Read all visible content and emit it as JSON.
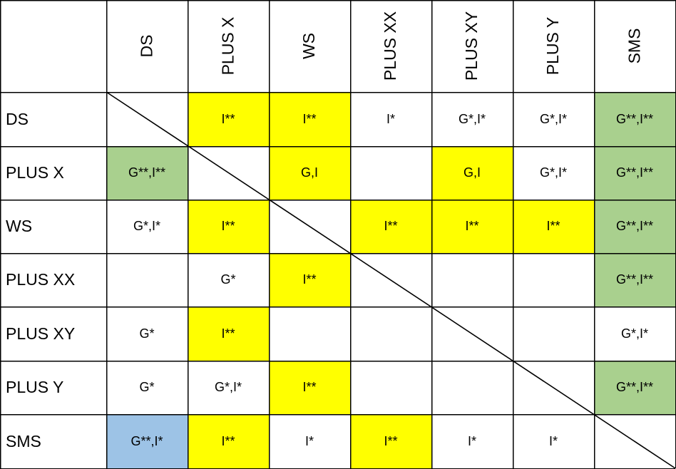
{
  "columns": [
    "DS",
    "PLUS X",
    "WS",
    "PLUS XX",
    "PLUS XY",
    "PLUS Y",
    "SMS"
  ],
  "rows": [
    {
      "label": "DS",
      "cells": [
        {
          "text": "",
          "fill": ""
        },
        {
          "text": "I**",
          "fill": "yellow"
        },
        {
          "text": "I**",
          "fill": "yellow"
        },
        {
          "text": "I*",
          "fill": ""
        },
        {
          "text": "G*,I*",
          "fill": ""
        },
        {
          "text": "G*,I*",
          "fill": ""
        },
        {
          "text": "G**,I**",
          "fill": "green"
        }
      ]
    },
    {
      "label": "PLUS X",
      "cells": [
        {
          "text": "G**,I**",
          "fill": "green"
        },
        {
          "text": "",
          "fill": ""
        },
        {
          "text": "G,I",
          "fill": "yellow"
        },
        {
          "text": "",
          "fill": ""
        },
        {
          "text": "G,I",
          "fill": "yellow"
        },
        {
          "text": "G*,I*",
          "fill": ""
        },
        {
          "text": "G**,I**",
          "fill": "green"
        }
      ]
    },
    {
      "label": "WS",
      "cells": [
        {
          "text": "G*,I*",
          "fill": ""
        },
        {
          "text": "I**",
          "fill": "yellow"
        },
        {
          "text": "",
          "fill": ""
        },
        {
          "text": "I**",
          "fill": "yellow"
        },
        {
          "text": "I**",
          "fill": "yellow"
        },
        {
          "text": "I**",
          "fill": "yellow"
        },
        {
          "text": "G**,I**",
          "fill": "green"
        }
      ]
    },
    {
      "label": "PLUS XX",
      "cells": [
        {
          "text": "",
          "fill": ""
        },
        {
          "text": "G*",
          "fill": ""
        },
        {
          "text": "I**",
          "fill": "yellow"
        },
        {
          "text": "",
          "fill": ""
        },
        {
          "text": "",
          "fill": ""
        },
        {
          "text": "",
          "fill": ""
        },
        {
          "text": "G**,I**",
          "fill": "green"
        }
      ]
    },
    {
      "label": "PLUS XY",
      "cells": [
        {
          "text": "G*",
          "fill": ""
        },
        {
          "text": "I**",
          "fill": "yellow"
        },
        {
          "text": "",
          "fill": ""
        },
        {
          "text": "",
          "fill": ""
        },
        {
          "text": "",
          "fill": ""
        },
        {
          "text": "",
          "fill": ""
        },
        {
          "text": "G*,I*",
          "fill": ""
        }
      ]
    },
    {
      "label": "PLUS Y",
      "cells": [
        {
          "text": "G*",
          "fill": ""
        },
        {
          "text": "G*,I*",
          "fill": ""
        },
        {
          "text": "I**",
          "fill": "yellow"
        },
        {
          "text": "",
          "fill": ""
        },
        {
          "text": "",
          "fill": ""
        },
        {
          "text": "",
          "fill": ""
        },
        {
          "text": "G**,I**",
          "fill": "green"
        }
      ]
    },
    {
      "label": "SMS",
      "cells": [
        {
          "text": "G**,I*",
          "fill": "blue"
        },
        {
          "text": "I**",
          "fill": "yellow"
        },
        {
          "text": "I*",
          "fill": ""
        },
        {
          "text": "I**",
          "fill": "yellow"
        },
        {
          "text": "I*",
          "fill": ""
        },
        {
          "text": "I*",
          "fill": ""
        },
        {
          "text": "",
          "fill": ""
        }
      ]
    }
  ],
  "colors": {
    "yellow": "#ffff00",
    "green": "#a9d08e",
    "blue": "#9dc3e6",
    "border": "#000000",
    "background": "#ffffff"
  }
}
